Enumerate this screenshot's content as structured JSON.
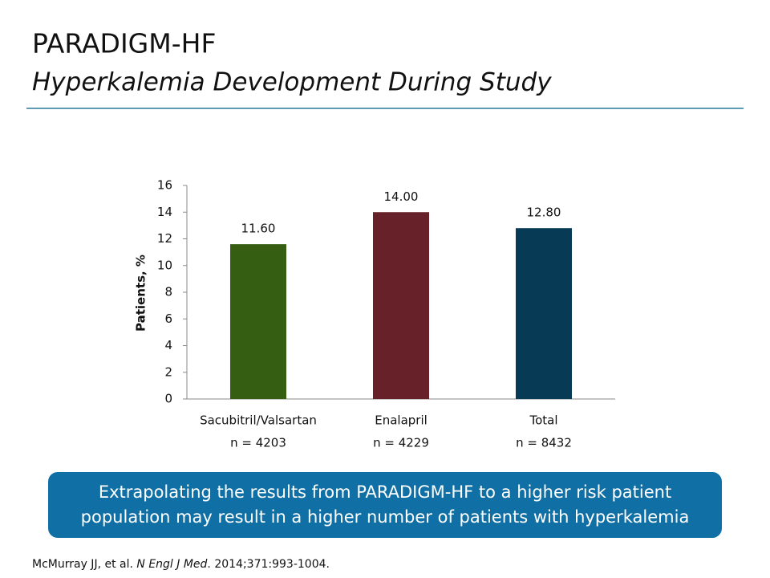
{
  "chart_data": {
    "type": "bar",
    "title": "PARADIGM-HF",
    "subtitle": "Hyperkalemia Development During Study",
    "ylabel": "Patients, %",
    "categories": [
      "Sacubitril/Valsartan",
      "Enalapril",
      "Total"
    ],
    "sublabels": [
      "n = 4203",
      "n = 4229",
      "n = 8432"
    ],
    "values": [
      11.6,
      14,
      12.8
    ],
    "value_labels": [
      "11.60",
      "14.00",
      "12.80"
    ],
    "colors": [
      "#365e12",
      "#662228",
      "#063a55"
    ],
    "ylim": [
      0,
      16
    ],
    "yticks": [
      0,
      2,
      4,
      6,
      8,
      10,
      12,
      14,
      16
    ],
    "grid": false
  },
  "callout": {
    "lines": [
      "Extrapolating the results from PARADIGM-HF to a higher risk patient",
      "population may result in a higher number of patients with hyperkalemia"
    ]
  },
  "citation": {
    "before": "McMurray JJ, et al. ",
    "journal": "N Engl J Med",
    "after": ". 2014;371:993-1004."
  }
}
